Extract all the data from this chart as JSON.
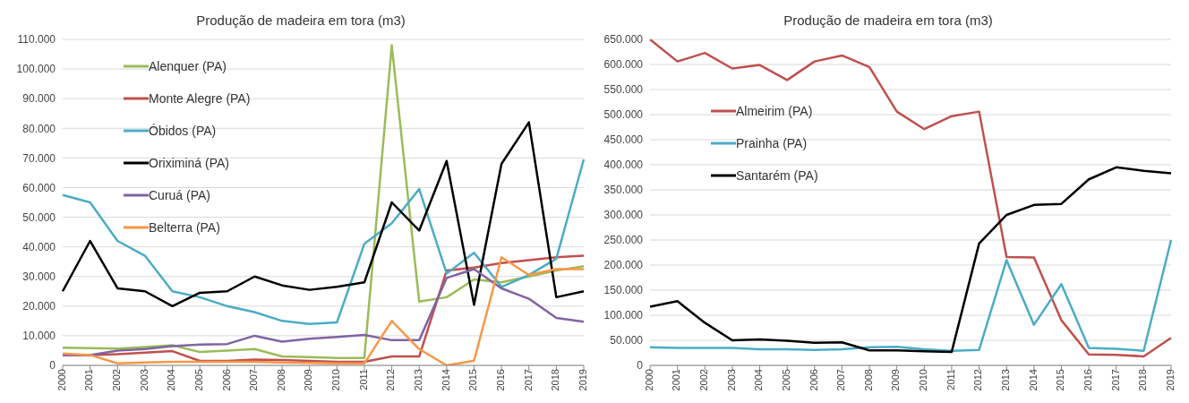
{
  "chart_data": [
    {
      "type": "line",
      "title": "Produção de madeira em tora (m3)",
      "categories": [
        "2000",
        "2001",
        "2002",
        "2003",
        "2004",
        "2005",
        "2006",
        "2007",
        "2008",
        "2009",
        "2010",
        "2011",
        "2012",
        "2013",
        "2014",
        "2015",
        "2016",
        "2017",
        "2018",
        "2019"
      ],
      "series": [
        {
          "name": "Alenquer (PA)",
          "color": "#9bbb59",
          "values": [
            6000,
            5800,
            5700,
            6200,
            6800,
            4500,
            5000,
            5500,
            3000,
            2800,
            2500,
            2500,
            108000,
            21500,
            23000,
            29000,
            28000,
            30000,
            32000,
            33500
          ]
        },
        {
          "name": "Monte Alegre (PA)",
          "color": "#c0504d",
          "values": [
            3500,
            3500,
            3800,
            4300,
            4800,
            1500,
            1500,
            2000,
            1800,
            1500,
            1200,
            1200,
            3000,
            3000,
            32000,
            33000,
            34500,
            35500,
            36500,
            37000
          ]
        },
        {
          "name": "Óbidos (PA)",
          "color": "#4bacc6",
          "values": [
            57500,
            55000,
            42000,
            37000,
            25000,
            23000,
            20000,
            18000,
            15000,
            14000,
            14500,
            41000,
            48000,
            59500,
            31000,
            38000,
            26500,
            30500,
            36000,
            69500
          ]
        },
        {
          "name": "Oriximiná (PA)",
          "color": "#000000",
          "values": [
            25000,
            42000,
            26000,
            25000,
            20000,
            24500,
            25000,
            30000,
            27000,
            25500,
            26500,
            28000,
            55000,
            45500,
            69000,
            20500,
            68000,
            82000,
            23000,
            25000
          ]
        },
        {
          "name": "Curuá (PA)",
          "color": "#8064a2",
          "values": [
            3500,
            3500,
            5000,
            5500,
            6500,
            7000,
            7200,
            10000,
            8000,
            9000,
            9600,
            10300,
            8500,
            8500,
            29500,
            32500,
            26000,
            22500,
            16000,
            14700
          ]
        },
        {
          "name": "Belterra (PA)",
          "color": "#f79646",
          "values": [
            4000,
            3500,
            700,
            1000,
            1200,
            1200,
            1200,
            1200,
            1000,
            800,
            700,
            700,
            15000,
            5500,
            0,
            1600,
            36500,
            30500,
            32500,
            32500
          ]
        }
      ],
      "ylim": [
        0,
        110000
      ],
      "yticks": [
        0,
        {
          "value": 10000,
          "label": "10.000"
        },
        {
          "value": 20000,
          "label": "20.000"
        },
        {
          "value": 30000,
          "label": "30.000"
        },
        {
          "value": 40000,
          "label": "40.000"
        },
        {
          "value": 50000,
          "label": "50.000"
        },
        {
          "value": 60000,
          "label": "60.000"
        },
        {
          "value": 70000,
          "label": "70.000"
        },
        {
          "value": 80000,
          "label": "80.000"
        },
        {
          "value": 90000,
          "label": "90.000"
        },
        {
          "value": 100000,
          "label": "100.000"
        },
        {
          "value": 110000,
          "label": "110.000"
        }
      ],
      "grid": "y",
      "legend": "top left",
      "marker": "none"
    },
    {
      "type": "line",
      "title": "Produção de madeira em tora (m3)",
      "categories": [
        "2000",
        "2001",
        "2002",
        "2003",
        "2004",
        "2005",
        "2006",
        "2007",
        "2008",
        "2009",
        "2010",
        "2011",
        "2012",
        "2013",
        "2014",
        "2015",
        "2016",
        "2017",
        "2018",
        "2019"
      ],
      "series": [
        {
          "name": "Almeirim (PA)",
          "color": "#c0504d",
          "values": [
            650000,
            606000,
            623000,
            592000,
            599000,
            569000,
            606000,
            618000,
            595000,
            506000,
            471000,
            497000,
            506000,
            216000,
            215000,
            90000,
            22000,
            21000,
            18000,
            55000
          ]
        },
        {
          "name": "Prainha (PA)",
          "color": "#4bacc6",
          "values": [
            36000,
            35000,
            35000,
            35000,
            32000,
            32000,
            31000,
            32000,
            36000,
            37000,
            32000,
            29000,
            31000,
            210000,
            81000,
            162000,
            35000,
            33000,
            29000,
            250000
          ]
        },
        {
          "name": "Santarém (PA)",
          "color": "#000000",
          "values": [
            117000,
            128000,
            85000,
            50000,
            52000,
            49000,
            45000,
            46000,
            30000,
            30000,
            28000,
            27000,
            243000,
            300000,
            320000,
            322000,
            371000,
            395000,
            388000,
            383000
          ]
        }
      ],
      "ylim": [
        0,
        650000
      ],
      "yticks": [
        0,
        {
          "value": 50000,
          "label": "50.000"
        },
        {
          "value": 100000,
          "label": "100.000"
        },
        {
          "value": 150000,
          "label": "150.000"
        },
        {
          "value": 200000,
          "label": "200.000"
        },
        {
          "value": 250000,
          "label": "250.000"
        },
        {
          "value": 300000,
          "label": "300.000"
        },
        {
          "value": 350000,
          "label": "350.000"
        },
        {
          "value": 400000,
          "label": "400.000"
        },
        {
          "value": 450000,
          "label": "450.000"
        },
        {
          "value": 500000,
          "label": "500.000"
        },
        {
          "value": 550000,
          "label": "550.000"
        },
        {
          "value": 600000,
          "label": "600.000"
        },
        {
          "value": 650000,
          "label": "650.000"
        }
      ],
      "grid": "y",
      "legend": "top left",
      "marker": "none"
    }
  ]
}
